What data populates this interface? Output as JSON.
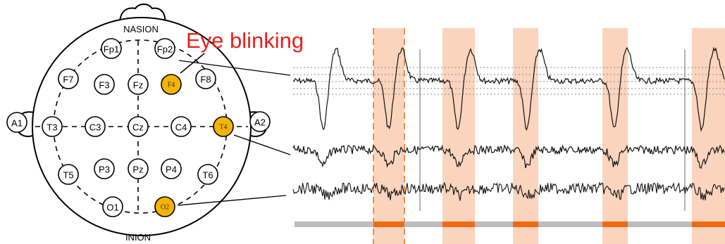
{
  "montage": {
    "top_label": "NASION",
    "bottom_label": "INION",
    "electrodes": [
      {
        "id": "Fp1",
        "highlighted": false
      },
      {
        "id": "Fp2",
        "highlighted": false
      },
      {
        "id": "F7",
        "highlighted": false
      },
      {
        "id": "F3",
        "highlighted": false
      },
      {
        "id": "Fz",
        "highlighted": false
      },
      {
        "id": "F4",
        "highlighted": true
      },
      {
        "id": "F8",
        "highlighted": false
      },
      {
        "id": "A1",
        "highlighted": false
      },
      {
        "id": "T3",
        "highlighted": false
      },
      {
        "id": "C3",
        "highlighted": false
      },
      {
        "id": "Cz",
        "highlighted": false
      },
      {
        "id": "C4",
        "highlighted": false
      },
      {
        "id": "T4",
        "highlighted": true
      },
      {
        "id": "A2",
        "highlighted": false
      },
      {
        "id": "T5",
        "highlighted": false
      },
      {
        "id": "P3",
        "highlighted": false
      },
      {
        "id": "Pz",
        "highlighted": false
      },
      {
        "id": "P4",
        "highlighted": false
      },
      {
        "id": "T6",
        "highlighted": false
      },
      {
        "id": "O1",
        "highlighted": false
      },
      {
        "id": "O2",
        "highlighted": true
      }
    ]
  },
  "annotation": {
    "text": "Eye blinking",
    "color": "#e8201c"
  },
  "signals": {
    "channels": [
      "F4",
      "T4",
      "O2"
    ],
    "blink_events": 5,
    "highlight_color": "#f9c6a8",
    "marker_color": "#f26a10",
    "bar_color": "#bdbdbd",
    "dashed_line_color": "#e8701c"
  },
  "colors": {
    "electrode_highlight": "#f5b400",
    "outline": "#000000"
  }
}
